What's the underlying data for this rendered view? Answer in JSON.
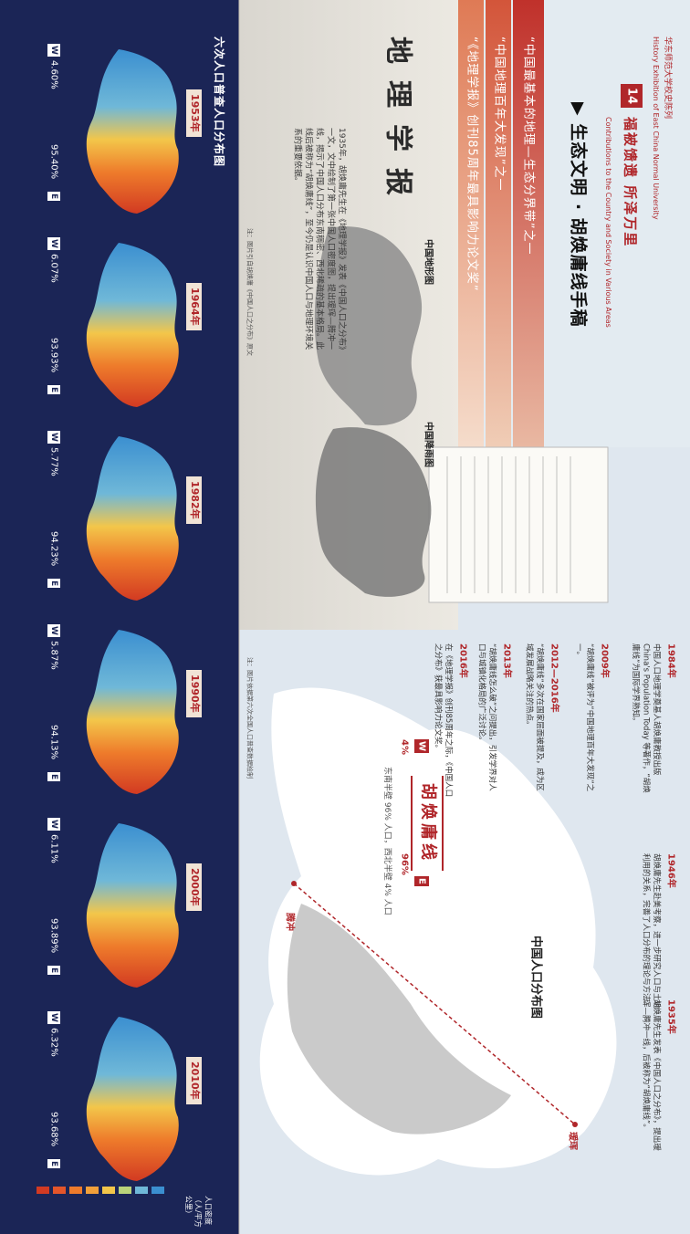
{
  "header": {
    "institution": "华东师范大学校史陈列",
    "institution_en": "History Exhibition of East China Normal University",
    "section_number": "14",
    "section_title": "福被馈遗 所泽万里",
    "section_title_en": "Contributions to the Country and Society in Various Areas"
  },
  "topic": "▶ 生态文明 · 胡焕庸线手稿",
  "honors": [
    "“中国最基本的地理—生态分界带”之一",
    "“中国地理百年大发现”之一",
    "“《地理学报》创刊85周年最具影响力论文奖”"
  ],
  "journal": {
    "title": "地理学报",
    "text": "1935年，胡焕庸先生在《地理学报》发表《中国人口之分布》一文，文中绘制了第一张中国人口密度图，提出瑷珲—腾冲一线，揭示了中国人口分布东南稠密、西北稀疏的基本格局。此线后被称为“胡焕庸线”，至今仍是认识中国人口与地理环境关系的重要依据。",
    "caption": "注：图片引自胡焕庸《中国人口之分布》原文"
  },
  "maps": {
    "terrain": "中国地形图",
    "rainfall": "中国降雨图"
  },
  "timeline": [
    {
      "year": "1984年",
      "text": "中国人口地理学奠基人胡焕庸教授出版 China's Population Today 等著作，“胡焕庸线”为国际学界熟知。"
    },
    {
      "year": "1946年",
      "text": "胡焕庸先生赴美考察，进一步研究人口与土地利用的关系，完善了人口分布的理论与方法。"
    },
    {
      "year": "1935年",
      "text": "胡焕庸先生发表《中国人口之分布》，提出瑷珲—腾冲一线，后被称为“胡焕庸线”。"
    },
    {
      "year": "2009年",
      "text": "“胡焕庸线”被评为“中国地理百年大发现”之一。"
    },
    {
      "year": "2012—2016年",
      "text": "“胡焕庸线”多次在国家层面被提及，成为区域发展战略关注的热点。"
    },
    {
      "year": "2013年",
      "text": "“胡焕庸线怎么破”之问提出，引发学界对人口与城镇化格局的广泛讨论。"
    },
    {
      "year": "2016年",
      "text": "在《地理学报》创刊85周年之际，《中国人口之分布》获最具影响力论文奖。"
    }
  ],
  "population_map": {
    "title": "中国人口分布图",
    "line": "胡焕庸线",
    "north": "瑷珲",
    "south": "腾冲",
    "west_label": "W",
    "east_label": "E",
    "west_share": "4%",
    "east_share": "96%",
    "note": "东南半壁 96% 人口，西北半壁 4% 人口",
    "caption": "注：图片依据第六次全国人口普查数据绘制"
  },
  "census": {
    "title": "六次人口普查人口分布图",
    "west_label": "W",
    "east_label": "E",
    "panels": [
      {
        "year": "1953年",
        "west": "4.60%",
        "east": "95.40%"
      },
      {
        "year": "1964年",
        "west": "6.07%",
        "east": "93.93%"
      },
      {
        "year": "1982年",
        "west": "5.77%",
        "east": "94.23%"
      },
      {
        "year": "1990年",
        "west": "5.87%",
        "east": "94.13%"
      },
      {
        "year": "2000年",
        "west": "6.11%",
        "east": "93.89%"
      },
      {
        "year": "2010年",
        "west": "6.32%",
        "east": "93.68%"
      }
    ],
    "legend_title": "人口密度（人/平方公里）"
  }
}
